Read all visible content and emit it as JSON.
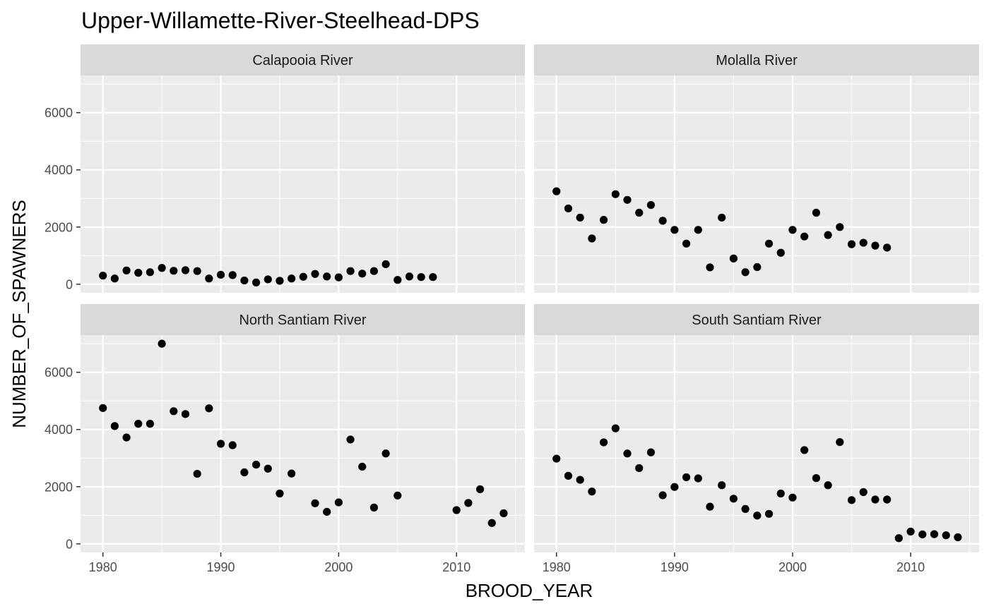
{
  "chart_data": {
    "type": "scatter",
    "title": "Upper-Willamette-River-Steelhead-DPS",
    "xlabel": "BROOD_YEAR",
    "ylabel": "NUMBER_OF_SPAWNERS",
    "xlim": [
      1978.1,
      2015.8
    ],
    "ylim": [
      -300,
      7300
    ],
    "x_ticks": [
      1980,
      1990,
      2000,
      2010
    ],
    "y_ticks": [
      0,
      2000,
      4000,
      6000
    ],
    "grid": true,
    "colors": {
      "panel_bg": "#ebebeb",
      "strip_bg": "#d9d9d9",
      "grid": "#ffffff",
      "point": "#000000",
      "tick": "#333333"
    },
    "panels": [
      {
        "name": "Calapooia River",
        "points": [
          [
            1980,
            300
          ],
          [
            1981,
            200
          ],
          [
            1982,
            480
          ],
          [
            1983,
            400
          ],
          [
            1984,
            420
          ],
          [
            1985,
            570
          ],
          [
            1986,
            470
          ],
          [
            1987,
            490
          ],
          [
            1988,
            460
          ],
          [
            1989,
            200
          ],
          [
            1990,
            330
          ],
          [
            1991,
            320
          ],
          [
            1992,
            130
          ],
          [
            1993,
            60
          ],
          [
            1994,
            170
          ],
          [
            1995,
            120
          ],
          [
            1996,
            200
          ],
          [
            1997,
            260
          ],
          [
            1998,
            360
          ],
          [
            1999,
            270
          ],
          [
            2000,
            240
          ],
          [
            2001,
            460
          ],
          [
            2002,
            370
          ],
          [
            2003,
            460
          ],
          [
            2004,
            700
          ],
          [
            2005,
            150
          ],
          [
            2006,
            270
          ],
          [
            2007,
            250
          ],
          [
            2008,
            250
          ]
        ]
      },
      {
        "name": "Molalla River",
        "points": [
          [
            1980,
            3250
          ],
          [
            1981,
            2650
          ],
          [
            1982,
            2330
          ],
          [
            1983,
            1600
          ],
          [
            1984,
            2250
          ],
          [
            1985,
            3150
          ],
          [
            1986,
            2950
          ],
          [
            1987,
            2500
          ],
          [
            1988,
            2770
          ],
          [
            1989,
            2220
          ],
          [
            1990,
            1900
          ],
          [
            1991,
            1420
          ],
          [
            1992,
            1900
          ],
          [
            1993,
            590
          ],
          [
            1994,
            2330
          ],
          [
            1995,
            900
          ],
          [
            1996,
            420
          ],
          [
            1997,
            600
          ],
          [
            1998,
            1420
          ],
          [
            1999,
            1100
          ],
          [
            2000,
            1900
          ],
          [
            2001,
            1670
          ],
          [
            2002,
            2500
          ],
          [
            2003,
            1720
          ],
          [
            2004,
            2000
          ],
          [
            2005,
            1400
          ],
          [
            2006,
            1450
          ],
          [
            2007,
            1350
          ],
          [
            2008,
            1280
          ]
        ]
      },
      {
        "name": "North Santiam River",
        "points": [
          [
            1980,
            4750
          ],
          [
            1981,
            4120
          ],
          [
            1982,
            3720
          ],
          [
            1983,
            4200
          ],
          [
            1984,
            4200
          ],
          [
            1985,
            7000
          ],
          [
            1986,
            4640
          ],
          [
            1987,
            4540
          ],
          [
            1988,
            2450
          ],
          [
            1989,
            4740
          ],
          [
            1990,
            3500
          ],
          [
            1991,
            3450
          ],
          [
            1992,
            2500
          ],
          [
            1993,
            2770
          ],
          [
            1994,
            2630
          ],
          [
            1995,
            1760
          ],
          [
            1996,
            2460
          ],
          [
            1998,
            1420
          ],
          [
            1999,
            1120
          ],
          [
            2000,
            1450
          ],
          [
            2001,
            3650
          ],
          [
            2002,
            2700
          ],
          [
            2003,
            1270
          ],
          [
            2004,
            3160
          ],
          [
            2005,
            1690
          ],
          [
            2010,
            1180
          ],
          [
            2011,
            1430
          ],
          [
            2012,
            1910
          ],
          [
            2013,
            730
          ],
          [
            2014,
            1070
          ]
        ]
      },
      {
        "name": "South Santiam River",
        "points": [
          [
            1980,
            2980
          ],
          [
            1981,
            2380
          ],
          [
            1982,
            2240
          ],
          [
            1983,
            1830
          ],
          [
            1984,
            3550
          ],
          [
            1985,
            4040
          ],
          [
            1986,
            3160
          ],
          [
            1987,
            2650
          ],
          [
            1988,
            3200
          ],
          [
            1989,
            1700
          ],
          [
            1990,
            1990
          ],
          [
            1991,
            2330
          ],
          [
            1992,
            2290
          ],
          [
            1993,
            1300
          ],
          [
            1994,
            2050
          ],
          [
            1995,
            1580
          ],
          [
            1996,
            1220
          ],
          [
            1997,
            990
          ],
          [
            1998,
            1050
          ],
          [
            1999,
            1760
          ],
          [
            2000,
            1620
          ],
          [
            2001,
            3280
          ],
          [
            2002,
            2300
          ],
          [
            2003,
            2050
          ],
          [
            2004,
            3560
          ],
          [
            2005,
            1530
          ],
          [
            2006,
            1810
          ],
          [
            2007,
            1550
          ],
          [
            2008,
            1550
          ],
          [
            2009,
            200
          ],
          [
            2010,
            430
          ],
          [
            2011,
            330
          ],
          [
            2012,
            340
          ],
          [
            2013,
            300
          ],
          [
            2014,
            230
          ]
        ]
      }
    ]
  }
}
